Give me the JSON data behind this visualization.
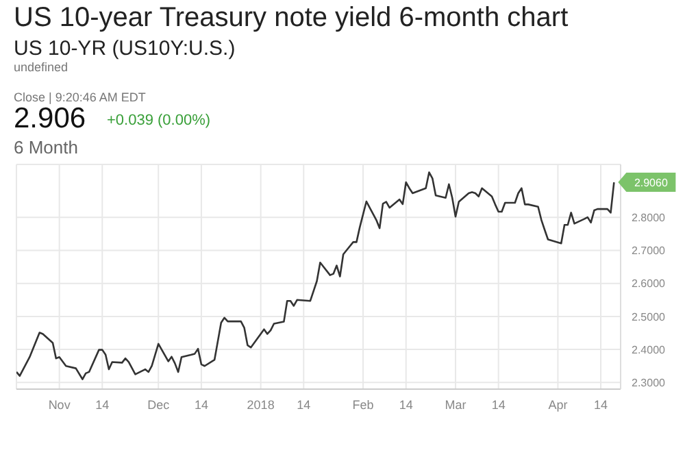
{
  "chart_data": {
    "type": "line",
    "title": "US 10-year Treasury note yield 6-month chart",
    "subtitle": "US 10-YR (US10Y:U.S.)",
    "annotations": [
      "undefined",
      "Close | 9:20:46 AM EDT",
      "2.906",
      "+0.039 (0.00%)",
      "6 Month",
      {
        "text": "2.9060",
        "x": "2018-04-18",
        "y": 2.906
      }
    ],
    "x": [
      "2017-10-19",
      "2017-10-20",
      "2017-10-23",
      "2017-10-26",
      "2017-10-27",
      "2017-10-30",
      "2017-10-31",
      "2017-11-01",
      "2017-11-03",
      "2017-11-06",
      "2017-11-08",
      "2017-11-09",
      "2017-11-10",
      "2017-11-13",
      "2017-11-14",
      "2017-11-15",
      "2017-11-16",
      "2017-11-17",
      "2017-11-20",
      "2017-11-21",
      "2017-11-22",
      "2017-11-24",
      "2017-11-27",
      "2017-11-28",
      "2017-11-29",
      "2017-12-01",
      "2017-12-04",
      "2017-12-05",
      "2017-12-06",
      "2017-12-07",
      "2017-12-08",
      "2017-12-11",
      "2017-12-12",
      "2017-12-13",
      "2017-12-14",
      "2017-12-15",
      "2017-12-18",
      "2017-12-20",
      "2017-12-21",
      "2017-12-22",
      "2017-12-26",
      "2017-12-27",
      "2017-12-28",
      "2017-12-29",
      "2018-01-02",
      "2018-01-03",
      "2018-01-04",
      "2018-01-05",
      "2018-01-08",
      "2018-01-09",
      "2018-01-10",
      "2018-01-11",
      "2018-01-12",
      "2018-01-16",
      "2018-01-18",
      "2018-01-19",
      "2018-01-22",
      "2018-01-23",
      "2018-01-24",
      "2018-01-25",
      "2018-01-26",
      "2018-01-29",
      "2018-01-30",
      "2018-01-31",
      "2018-02-02",
      "2018-02-05",
      "2018-02-06",
      "2018-02-07",
      "2018-02-08",
      "2018-02-09",
      "2018-02-12",
      "2018-02-13",
      "2018-02-14",
      "2018-02-15",
      "2018-02-16",
      "2018-02-20",
      "2018-02-21",
      "2018-02-22",
      "2018-02-23",
      "2018-02-26",
      "2018-02-27",
      "2018-02-28",
      "2018-03-01",
      "2018-03-02",
      "2018-03-05",
      "2018-03-06",
      "2018-03-07",
      "2018-03-08",
      "2018-03-09",
      "2018-03-12",
      "2018-03-13",
      "2018-03-14",
      "2018-03-15",
      "2018-03-16",
      "2018-03-19",
      "2018-03-20",
      "2018-03-21",
      "2018-03-22",
      "2018-03-23",
      "2018-03-26",
      "2018-03-27",
      "2018-03-28",
      "2018-03-29",
      "2018-04-02",
      "2018-04-03",
      "2018-04-04",
      "2018-04-05",
      "2018-04-06",
      "2018-04-09",
      "2018-04-10",
      "2018-04-11",
      "2018-04-12",
      "2018-04-13",
      "2018-04-16",
      "2018-04-17",
      "2018-04-18"
    ],
    "series": [
      {
        "color": "#333333",
        "values": [
          2.332,
          2.32,
          2.377,
          2.451,
          2.447,
          2.42,
          2.373,
          2.377,
          2.35,
          2.343,
          2.31,
          2.328,
          2.332,
          2.399,
          2.399,
          2.384,
          2.34,
          2.362,
          2.36,
          2.373,
          2.362,
          2.325,
          2.34,
          2.332,
          2.35,
          2.417,
          2.364,
          2.378,
          2.358,
          2.332,
          2.377,
          2.384,
          2.387,
          2.402,
          2.355,
          2.35,
          2.369,
          2.481,
          2.496,
          2.485,
          2.485,
          2.466,
          2.413,
          2.406,
          2.461,
          2.447,
          2.458,
          2.478,
          2.484,
          2.547,
          2.547,
          2.532,
          2.55,
          2.547,
          2.607,
          2.663,
          2.625,
          2.629,
          2.654,
          2.621,
          2.688,
          2.725,
          2.725,
          2.77,
          2.848,
          2.792,
          2.767,
          2.841,
          2.847,
          2.829,
          2.854,
          2.84,
          2.906,
          2.888,
          2.873,
          2.888,
          2.936,
          2.918,
          2.866,
          2.859,
          2.9,
          2.859,
          2.802,
          2.847,
          2.873,
          2.876,
          2.873,
          2.863,
          2.888,
          2.863,
          2.839,
          2.817,
          2.817,
          2.844,
          2.844,
          2.873,
          2.888,
          2.839,
          2.839,
          2.832,
          2.792,
          2.762,
          2.733,
          2.721,
          2.777,
          2.777,
          2.814,
          2.781,
          2.795,
          2.8,
          2.784,
          2.821,
          2.825,
          2.825,
          2.814,
          2.906
        ]
      }
    ],
    "xlim": [
      "2017-10-19",
      "2018-04-20"
    ],
    "xticks": [
      {
        "value": "2017-11-01",
        "label": "Nov"
      },
      {
        "value": "2017-11-14",
        "label": "14"
      },
      {
        "value": "2017-12-01",
        "label": "Dec"
      },
      {
        "value": "2017-12-14",
        "label": "14"
      },
      {
        "value": "2018-01-01",
        "label": "2018"
      },
      {
        "value": "2018-01-14",
        "label": "14"
      },
      {
        "value": "2018-02-01",
        "label": "Feb"
      },
      {
        "value": "2018-02-14",
        "label": "14"
      },
      {
        "value": "2018-03-01",
        "label": "Mar"
      },
      {
        "value": "2018-03-14",
        "label": "14"
      },
      {
        "value": "2018-04-01",
        "label": "Apr"
      },
      {
        "value": "2018-04-14",
        "label": "14"
      }
    ],
    "ylim": [
      2.28,
      2.96
    ],
    "yticks": [
      {
        "value": 2.3,
        "label": "2.3000"
      },
      {
        "value": 2.4,
        "label": "2.4000"
      },
      {
        "value": 2.5,
        "label": "2.5000"
      },
      {
        "value": 2.6,
        "label": "2.6000"
      },
      {
        "value": 2.7,
        "label": "2.7000"
      },
      {
        "value": 2.8,
        "label": "2.8000"
      }
    ],
    "grid": true,
    "marker": "none",
    "line_style": "solid"
  }
}
